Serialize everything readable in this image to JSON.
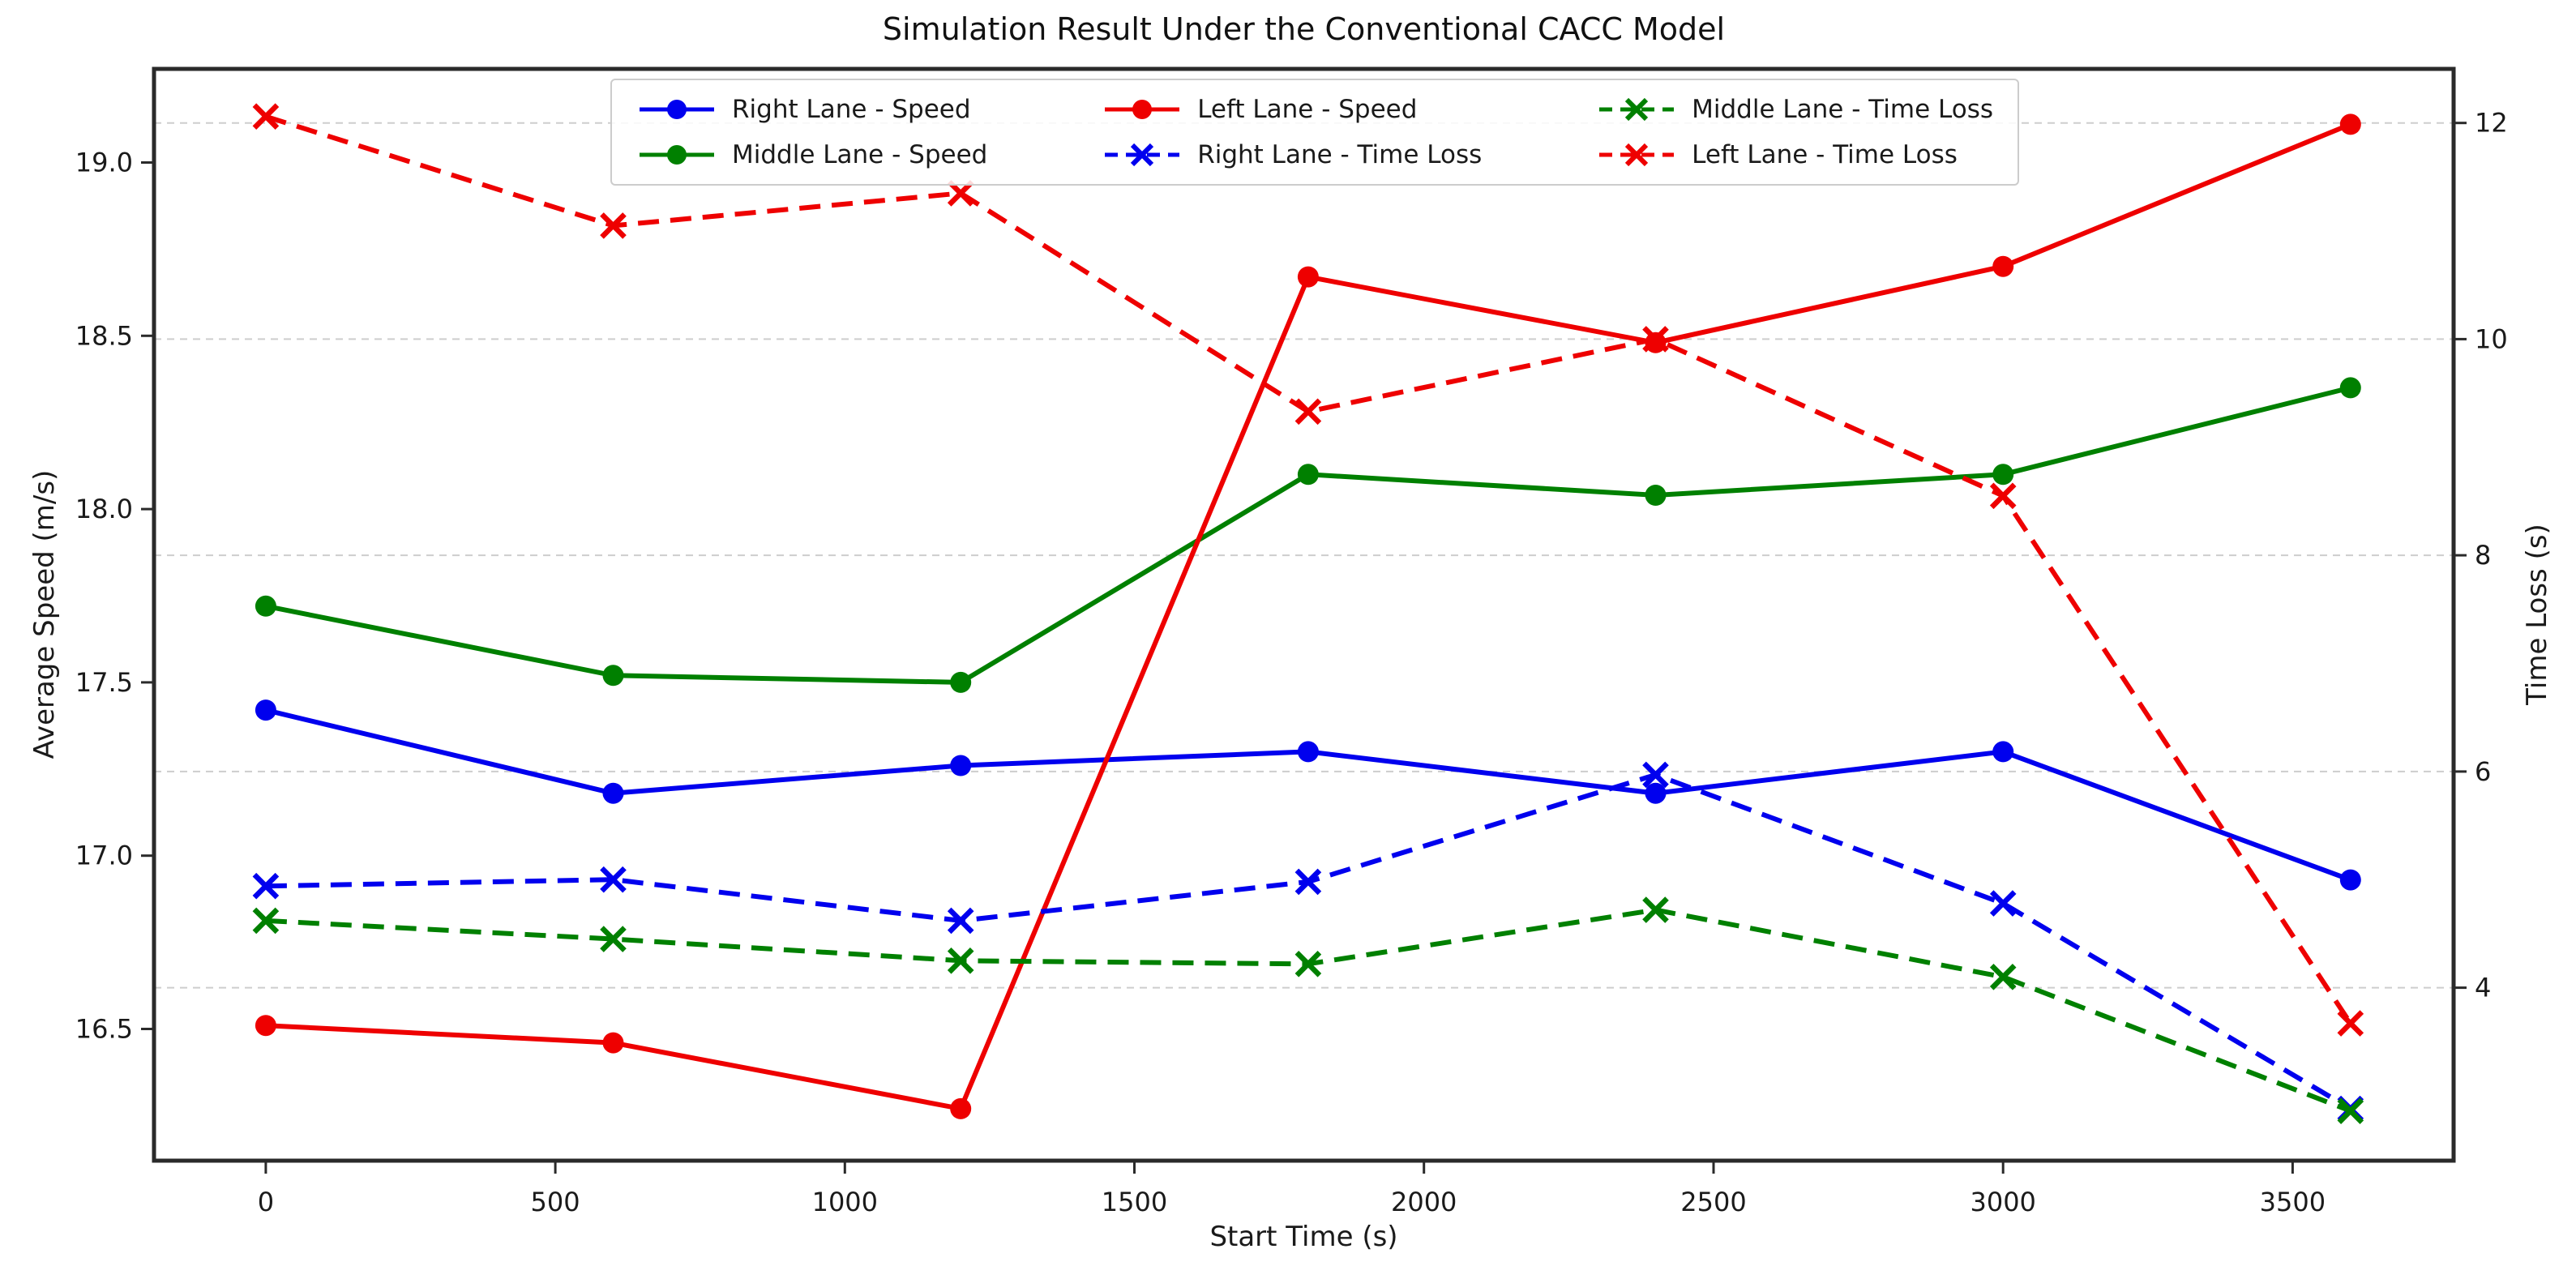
{
  "chart_data": {
    "type": "line",
    "title": "Simulation Result Under the Conventional CACC Model",
    "xlabel": "Start Time (s)",
    "ylabel_left": "Average Speed (m/s)",
    "ylabel_right": "Time Loss (s)",
    "x": [
      0,
      600,
      1200,
      1800,
      2400,
      3000,
      3600
    ],
    "xtick_labels": [
      "0",
      "500",
      "1000",
      "1500",
      "2000",
      "2500",
      "3000",
      "3500"
    ],
    "ytick_labels_left": [
      "16.5",
      "17.0",
      "17.5",
      "18.0",
      "18.5",
      "19.0"
    ],
    "ytick_labels_right": [
      "4",
      "6",
      "8",
      "10",
      "12"
    ],
    "xlim": [
      -193,
      3778
    ],
    "ylim_left": [
      16.12,
      19.27
    ],
    "ylim_right": [
      2.4,
      12.5
    ],
    "grid": {
      "on": true,
      "axis": "right",
      "color": "#cdcdcd",
      "style": "dashed"
    },
    "legend": {
      "position": "upper center, inside plot",
      "columns": 3,
      "order": "column-major"
    },
    "series": [
      {
        "name": "Right Lane - Speed",
        "axis": "left",
        "color": "#0000ee",
        "line": "solid",
        "marker": "circle",
        "values": [
          17.42,
          17.18,
          17.26,
          17.3,
          17.18,
          17.3,
          16.93
        ]
      },
      {
        "name": "Middle Lane - Speed",
        "axis": "left",
        "color": "#008000",
        "line": "solid",
        "marker": "circle",
        "values": [
          17.72,
          17.52,
          17.5,
          18.1,
          18.04,
          18.1,
          18.35
        ]
      },
      {
        "name": "Left Lane - Speed",
        "axis": "left",
        "color": "#ee0000",
        "line": "solid",
        "marker": "circle",
        "values": [
          16.51,
          16.46,
          16.27,
          18.67,
          18.48,
          18.7,
          19.11
        ]
      },
      {
        "name": "Right Lane - Time Loss",
        "axis": "right",
        "color": "#0000ee",
        "line": "dashed",
        "marker": "x",
        "values": [
          4.94,
          5.0,
          4.62,
          4.98,
          5.97,
          4.78,
          2.88
        ]
      },
      {
        "name": "Middle Lane - Time Loss",
        "axis": "right",
        "color": "#008000",
        "line": "dashed",
        "marker": "x",
        "values": [
          4.62,
          4.45,
          4.25,
          4.22,
          4.72,
          4.1,
          2.86
        ]
      },
      {
        "name": "Left Lane - Time Loss",
        "axis": "right",
        "color": "#ee0000",
        "line": "dashed",
        "marker": "x",
        "values": [
          12.06,
          11.05,
          11.35,
          9.33,
          10.0,
          8.55,
          3.67
        ]
      }
    ]
  }
}
